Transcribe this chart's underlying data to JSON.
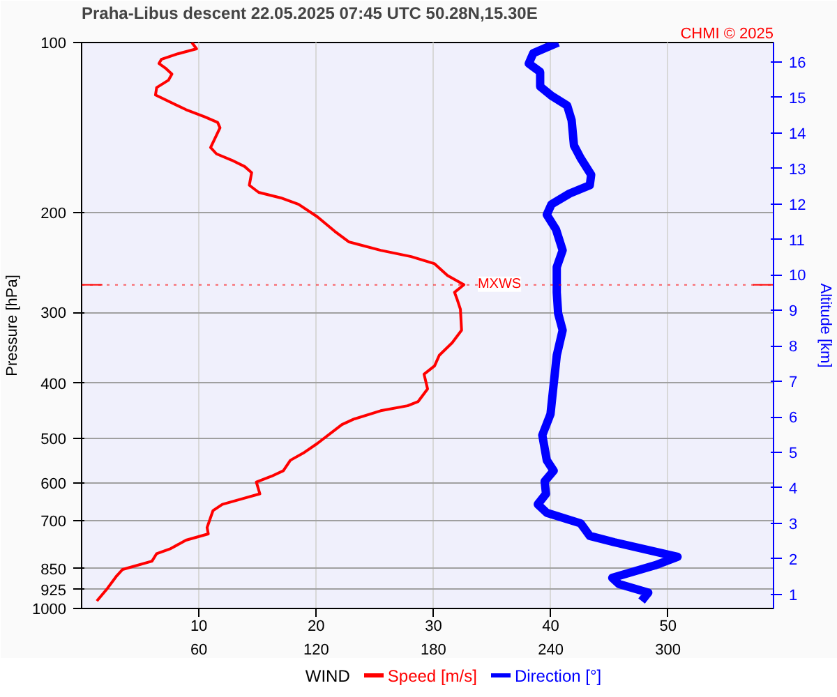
{
  "chart_data": {
    "type": "line",
    "title": "Praha-Libus  descent  22.05.2025 07:45 UTC  50.28N,15.30E",
    "xlabel": "WIND",
    "ylabel": "Pressure [hPa]",
    "y2label": "Altitude [km]",
    "annotations": [
      "CHMI © 2025"
    ],
    "log": "y",
    "grid": true,
    "legend": "bottom",
    "xlim": [
      0,
      59
    ],
    "xticks": [
      10,
      20,
      30,
      40,
      50
    ],
    "x2lim": [
      0,
      354
    ],
    "x2ticks": [
      60,
      120,
      180,
      240,
      300
    ],
    "ylim": [
      1000,
      100
    ],
    "yticks": [
      100,
      200,
      300,
      400,
      500,
      600,
      700,
      850,
      925,
      1000
    ],
    "y2lim": [
      0.6,
      16.55
    ],
    "y2ticks": [
      1,
      2,
      3,
      4,
      5,
      6,
      7,
      8,
      9,
      10,
      11,
      12,
      13,
      14,
      15,
      16
    ],
    "ref_lines": [
      {
        "axis": "y",
        "value": 268,
        "label": "MXWS",
        "color": "#ff0000"
      }
    ],
    "series": [
      {
        "name": "Speed [m/s]",
        "color": "#ff0000",
        "x": [
          9.4,
          9.8,
          8.2,
          6.8,
          6.6,
          7.2,
          7.7,
          7.4,
          6.4,
          6.3,
          8.9,
          10.5,
          11.6,
          11.8,
          11.0,
          11.5,
          12.8,
          13.9,
          14.5,
          14.3,
          15.1,
          17.0,
          18.5,
          20.1,
          21.6,
          22.8,
          25.5,
          28.1,
          30.1,
          31.2,
          32.6,
          31.8,
          32.0,
          32.3,
          32.4,
          31.6,
          30.5,
          30.1,
          29.2,
          29.5,
          28.7,
          27.8,
          25.5,
          23.2,
          22.2,
          20.1,
          18.9,
          17.8,
          17.2,
          16.2,
          14.9,
          15.2,
          13.9,
          12.0,
          11.2,
          10.7,
          10.8,
          8.9,
          7.6,
          6.4,
          6.0,
          3.5,
          3.0,
          2.2,
          1.3
        ],
        "values": [
          100,
          102.6,
          104.7,
          107.1,
          108.9,
          111.2,
          113.7,
          116.6,
          120.1,
          123.8,
          131.4,
          135.3,
          138.4,
          141.5,
          153.3,
          157.3,
          161.4,
          165.6,
          169.8,
          178.7,
          184.0,
          188.2,
          193.1,
          203.2,
          215.7,
          225.1,
          232.9,
          238.9,
          246.0,
          258.0,
          267.9,
          276.3,
          283.5,
          295.9,
          322.4,
          339.2,
          357.0,
          372.6,
          385.5,
          409.3,
          430.8,
          438.3,
          447.3,
          462.9,
          473.2,
          511.0,
          531.5,
          547.2,
          571.0,
          583.8,
          598.0,
          627.3,
          638.1,
          654.6,
          671.8,
          719.5,
          738.2,
          757.3,
          783.7,
          799.9,
          824.9,
          853.1,
          875.3,
          921.5,
          969.8
        ]
      },
      {
        "name": "Direction [°]",
        "color": "#0000ff",
        "axis": "x2",
        "x": [
          243.8,
          231.1,
          228.8,
          234.6,
          234.6,
          240.4,
          248.4,
          250.7,
          251.9,
          255.3,
          260.7,
          260.0,
          249.6,
          240.4,
          238.0,
          242.7,
          246.1,
          243.1,
          243.1,
          243.8,
          246.1,
          243.1,
          240.8,
          239.9,
          235.7,
          238.0,
          241.5,
          236.9,
          237.6,
          233.4,
          238.0,
          255.3,
          260.0,
          272.6,
          304.9,
          293.4,
          271.5,
          275.0,
          289.9,
          286.5
        ],
        "values": [
          100,
          104.4,
          108.9,
          112.7,
          119.6,
          124.2,
          129.2,
          137.2,
          152.0,
          160.0,
          171.3,
          178.7,
          184.9,
          193.1,
          201.5,
          213.9,
          232.9,
          249.4,
          276.3,
          301.0,
          322.4,
          357.0,
          423.6,
          453.5,
          494.0,
          547.2,
          571.0,
          596.1,
          627.3,
          654.6,
          677.6,
          707.3,
          744.4,
          763.9,
          810.4,
          838.8,
          882.9,
          905.7,
          937.5,
          969.8
        ]
      }
    ]
  }
}
